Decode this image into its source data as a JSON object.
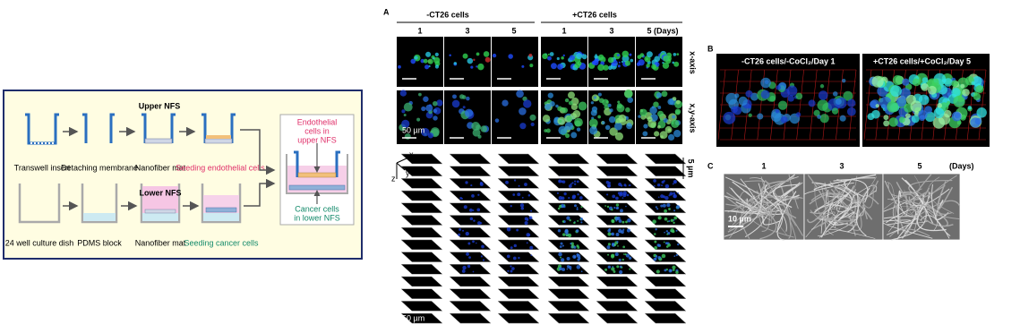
{
  "diagram": {
    "upper_label": "Upper NFS",
    "lower_label": "Lower NFS",
    "steps_top": [
      "Transwell insert",
      "Detaching membrane",
      "Nanofiber mat",
      "Seeding endothelial cells"
    ],
    "steps_bottom": [
      "24 well culture dish",
      "PDMS block",
      "Nanofiber mat",
      "Seeding cancer cells"
    ],
    "result_top": [
      "Endothelial",
      "cells in",
      "upper NFS"
    ],
    "result_bottom": [
      "Cancer cells",
      "in lower NFS"
    ]
  },
  "panel_a": {
    "label": "A",
    "groups": [
      "-CT26 cells",
      "+CT26 cells"
    ],
    "days": [
      "1",
      "3",
      "5",
      "1",
      "3",
      "5 (Days)"
    ],
    "row_labels": [
      "x-axis",
      "x,y-axis"
    ],
    "scale_bar": "50 µm",
    "axes": [
      "x",
      "y",
      "z"
    ],
    "stack_depth": "5 µm",
    "stack_scale_bar": "50 µm"
  },
  "panel_b": {
    "label": "B",
    "captions": [
      "-CT26 cells/-CoCl₂/Day 1",
      "+CT26 cells/+CoCl₂/Day 5"
    ]
  },
  "panel_c": {
    "label": "C",
    "days": [
      "1",
      "3",
      "5"
    ],
    "unit": "(Days)",
    "scale_bar": "10 µm"
  }
}
